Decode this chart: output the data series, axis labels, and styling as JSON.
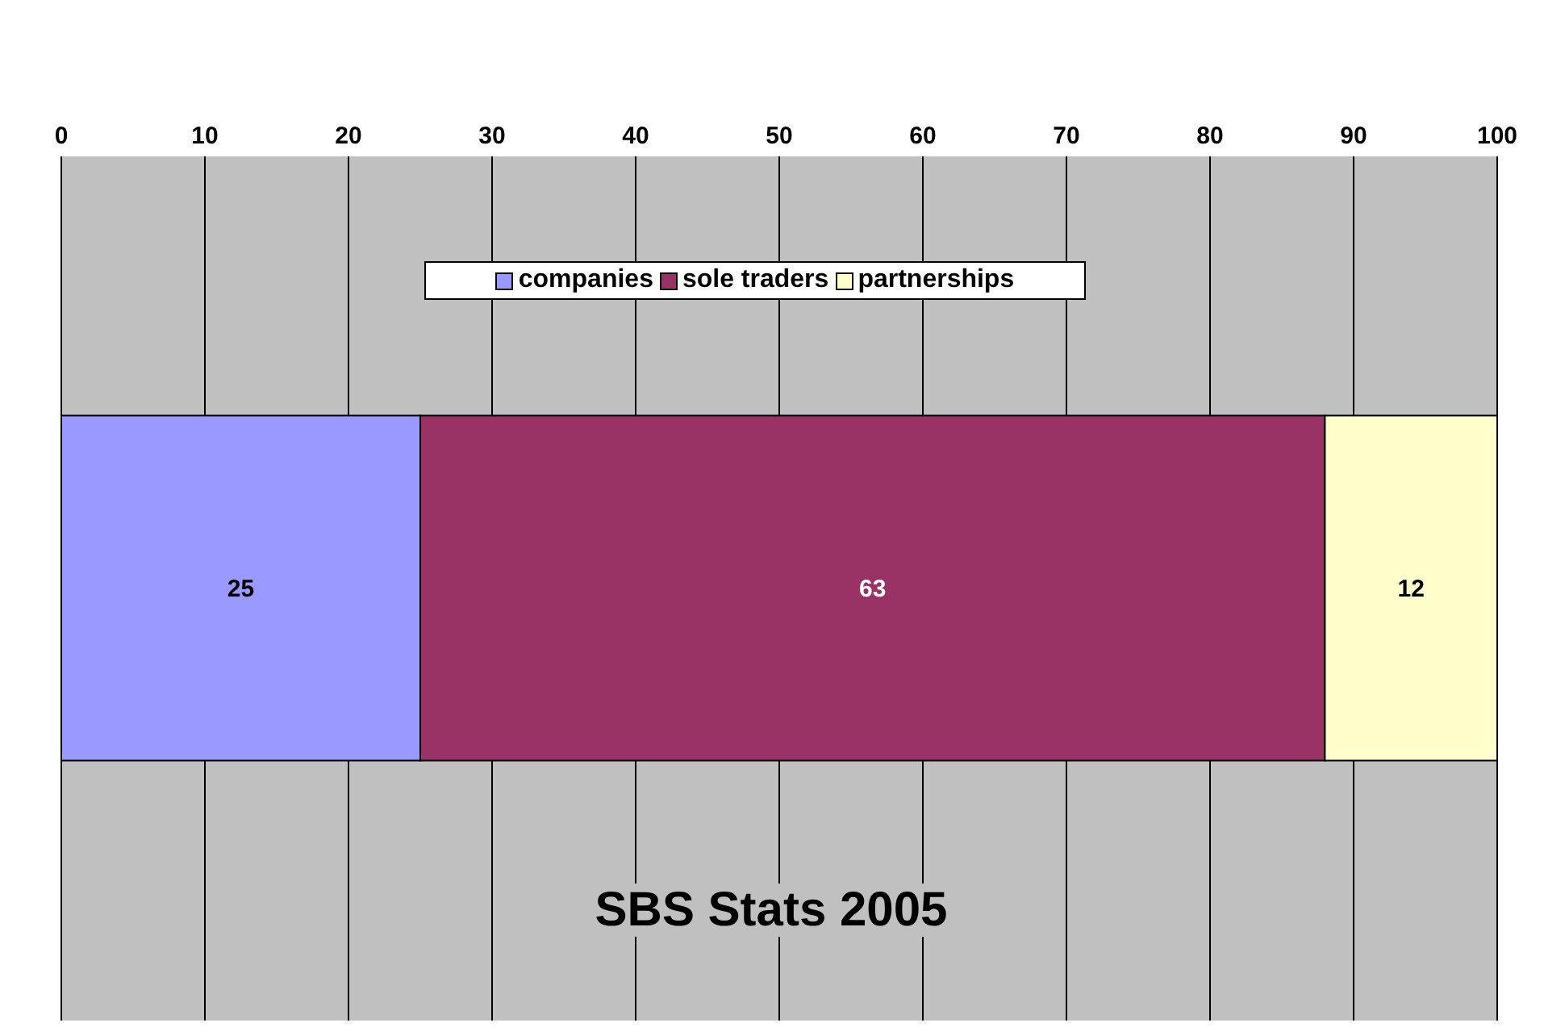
{
  "chart_data": {
    "type": "bar",
    "orientation": "horizontal",
    "stacked": true,
    "title": "SBS Stats 2005",
    "categories": [
      null
    ],
    "series": [
      {
        "name": "companies",
        "color": "#9999ff",
        "values": [
          25
        ]
      },
      {
        "name": "sole traders",
        "color": "#993366",
        "values": [
          63
        ]
      },
      {
        "name": "partnerships",
        "color": "#ffffcc",
        "values": [
          12
        ]
      }
    ],
    "xlim": [
      0,
      100
    ],
    "xticks": [
      0,
      10,
      20,
      30,
      40,
      50,
      60,
      70,
      80,
      90,
      100
    ],
    "grid": "x",
    "legend": "top",
    "data_labels": true
  }
}
